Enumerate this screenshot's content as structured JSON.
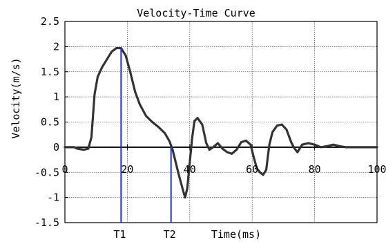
{
  "chart_data": {
    "type": "line",
    "title": "Velocity-Time Curve",
    "xlabel": "Time(ms)",
    "ylabel": "Velocity(m/s)",
    "xlim": [
      0,
      100
    ],
    "ylim": [
      -1.5,
      2.5
    ],
    "x_ticks": [
      "0",
      "20",
      "40",
      "60",
      "80",
      "100"
    ],
    "y_ticks": [
      "2.5",
      "2",
      "1.5",
      "1",
      "0.5",
      "0",
      "-0.5",
      "-1",
      "-1.5"
    ],
    "grid": true,
    "series": [
      {
        "color": "#333333",
        "points": [
          [
            0,
            0
          ],
          [
            3,
            0
          ],
          [
            4,
            -0.03
          ],
          [
            6,
            -0.05
          ],
          [
            7.5,
            -0.03
          ],
          [
            8.5,
            0.2
          ],
          [
            9.5,
            1.05
          ],
          [
            10.5,
            1.4
          ],
          [
            12,
            1.6
          ],
          [
            13.5,
            1.75
          ],
          [
            15,
            1.9
          ],
          [
            16.5,
            1.97
          ],
          [
            18,
            1.97
          ],
          [
            19.5,
            1.82
          ],
          [
            21,
            1.48
          ],
          [
            22.5,
            1.1
          ],
          [
            24,
            0.85
          ],
          [
            26,
            0.62
          ],
          [
            28,
            0.5
          ],
          [
            30,
            0.4
          ],
          [
            32,
            0.28
          ],
          [
            33.5,
            0.12
          ],
          [
            34.5,
            -0.05
          ],
          [
            35.5,
            -0.3
          ],
          [
            36.5,
            -0.55
          ],
          [
            37.5,
            -0.78
          ],
          [
            38.5,
            -1.0
          ],
          [
            39.2,
            -0.82
          ],
          [
            40,
            -0.3
          ],
          [
            40.8,
            0.2
          ],
          [
            41.5,
            0.52
          ],
          [
            42.5,
            0.58
          ],
          [
            44,
            0.45
          ],
          [
            45.3,
            0.08
          ],
          [
            46.3,
            -0.05
          ],
          [
            47.5,
            0.0
          ],
          [
            49,
            0.08
          ],
          [
            50.5,
            -0.03
          ],
          [
            52,
            -0.1
          ],
          [
            53.5,
            -0.13
          ],
          [
            55,
            -0.05
          ],
          [
            56.5,
            0.1
          ],
          [
            58,
            0.13
          ],
          [
            59.5,
            0.05
          ],
          [
            60.5,
            -0.2
          ],
          [
            61.5,
            -0.42
          ],
          [
            62.5,
            -0.5
          ],
          [
            63.5,
            -0.55
          ],
          [
            64.5,
            -0.45
          ],
          [
            65.5,
            0.05
          ],
          [
            66.5,
            0.3
          ],
          [
            68,
            0.43
          ],
          [
            69.5,
            0.45
          ],
          [
            71,
            0.35
          ],
          [
            72.5,
            0.1
          ],
          [
            73.5,
            -0.02
          ],
          [
            74.5,
            -0.1
          ],
          [
            76,
            0.05
          ],
          [
            78,
            0.08
          ],
          [
            80,
            0.05
          ],
          [
            82,
            0.0
          ],
          [
            84,
            0.02
          ],
          [
            86,
            0.05
          ],
          [
            88,
            0.02
          ],
          [
            90,
            0.0
          ],
          [
            100,
            0.0
          ]
        ]
      }
    ],
    "markers": [
      {
        "label": "T1",
        "x": 18,
        "y_top": 1.97,
        "color": "#1a2fd6"
      },
      {
        "label": "T2",
        "x": 34,
        "y_top": 0.0,
        "color": "#1a2fd6"
      }
    ]
  }
}
